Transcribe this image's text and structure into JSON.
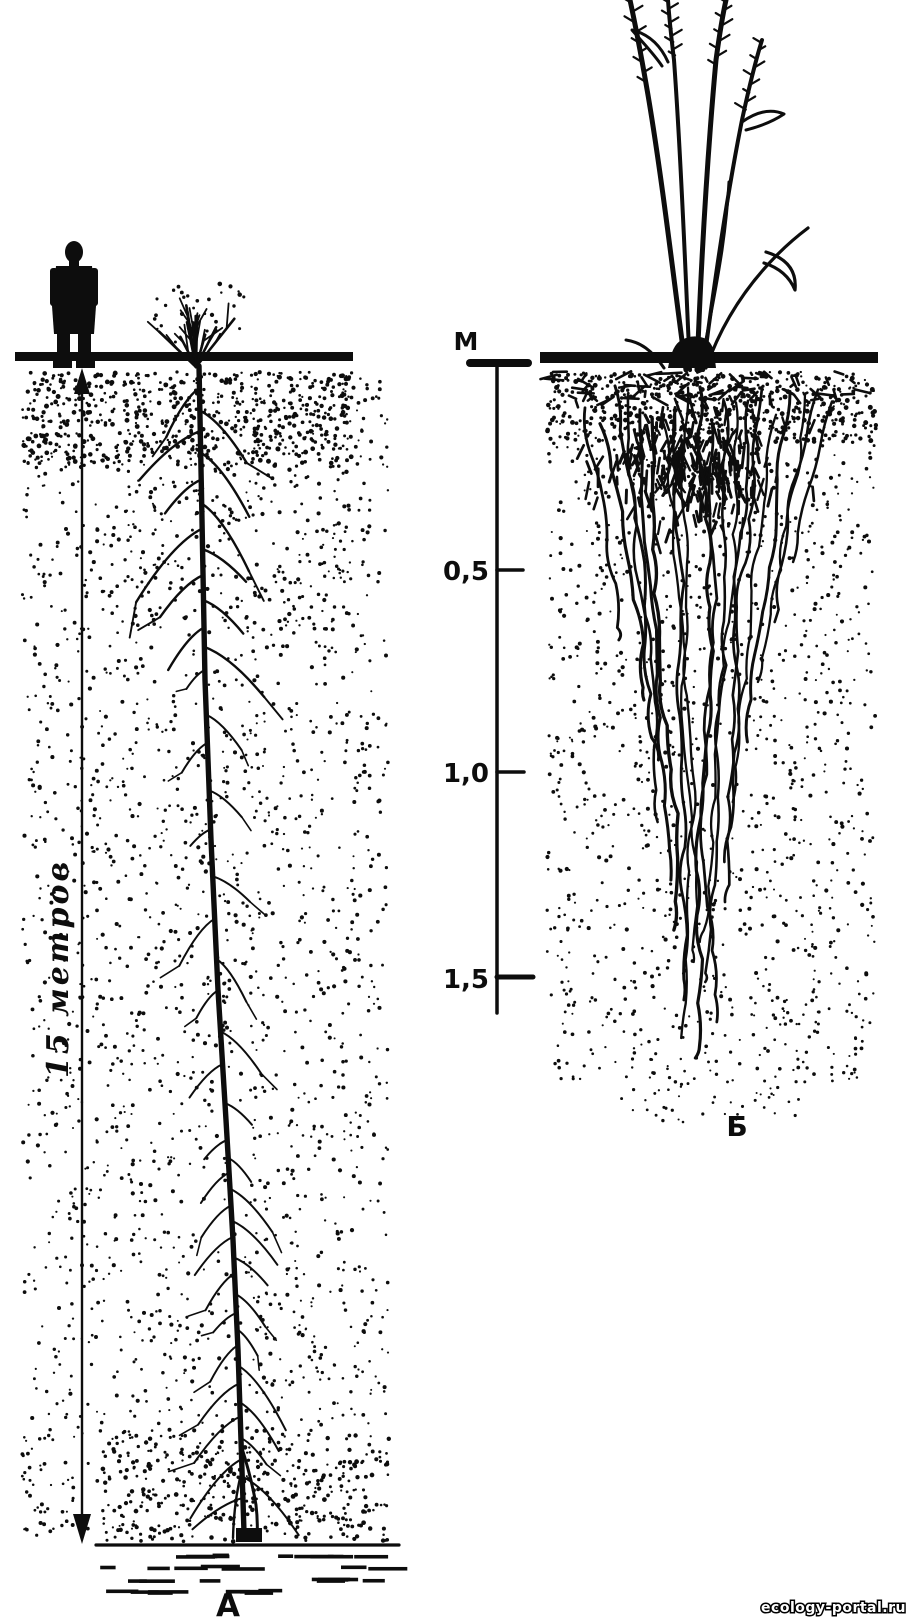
{
  "illustration": {
    "paper_color": "#ffffff",
    "ink_color": "#0d0d0d",
    "figure_a": {
      "label": "А",
      "depth_label": "15 метров"
    },
    "figure_b": {
      "label": "Б",
      "scale": {
        "unit": "М",
        "tick_05": "0,5",
        "tick_10": "1,0",
        "tick_15": "1,5"
      }
    },
    "watermark": "ecology-portal.ru"
  }
}
